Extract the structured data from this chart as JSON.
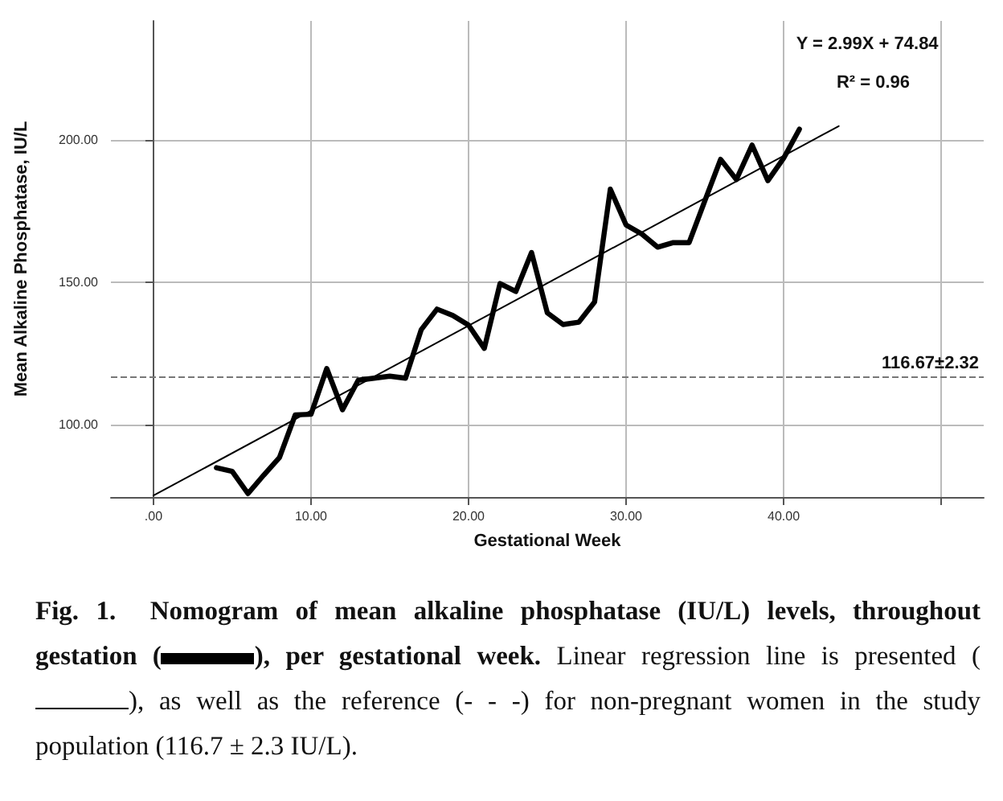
{
  "chart_data": {
    "type": "line",
    "xlabel": "Gestational Week",
    "ylabel": "Mean Alkaline Phosphatase, IU/L",
    "xlim": [
      -2.7,
      52.7
    ],
    "ylim": [
      74.5,
      242
    ],
    "xticks": [
      {
        "value": 0,
        "label": ".00"
      },
      {
        "value": 10,
        "label": "10.00"
      },
      {
        "value": 20,
        "label": "20.00"
      },
      {
        "value": 30,
        "label": "30.00"
      },
      {
        "value": 40,
        "label": "40.00"
      },
      {
        "value": 50,
        "label": null
      }
    ],
    "yticks": [
      {
        "value": 100,
        "label": "100.00"
      },
      {
        "value": 150,
        "label": "150.00"
      },
      {
        "value": 200,
        "label": "200.00"
      }
    ],
    "grid": true,
    "marker": "none",
    "series": [
      {
        "color": "#000000",
        "x": [
          4,
          5,
          6,
          7,
          8,
          9,
          10,
          11,
          12,
          13,
          14,
          15,
          16,
          17,
          18,
          19,
          20,
          21,
          22,
          23,
          24,
          25,
          26,
          27,
          28,
          29,
          30,
          31,
          32,
          33,
          34,
          35,
          36,
          37,
          38,
          39,
          40,
          41
        ],
        "values": [
          84.8,
          83.5,
          75.7,
          82.2,
          88.4,
          103.4,
          103.6,
          119.7,
          105.2,
          115.6,
          116.3,
          117,
          116.3,
          133.4,
          140.6,
          138.4,
          135,
          126.8,
          149.6,
          146.8,
          160.5,
          139.3,
          135.2,
          136,
          143.1,
          182.8,
          170.2,
          167,
          162.4,
          164,
          164,
          178.7,
          193.3,
          186.2,
          198.3,
          185.8,
          193.7,
          203.9
        ]
      },
      {
        "color": "#000000",
        "x": [
          0,
          43.5
        ],
        "values": [
          75,
          205
        ]
      }
    ],
    "ref_lines": [
      {
        "axis": "y",
        "value": 116.67,
        "label": "116.67±2.32",
        "color": "#777777",
        "line_style": "dashed"
      }
    ],
    "annotations": [
      "Y = 2.99X + 74.84",
      "R² = 0.96",
      "Fig. 1.",
      "Nomogram of mean alkaline phosphatase (IU/L) levels, throughout gestation (",
      "), per gestational week.",
      "Linear regression line is presented (",
      "), as well as the reference (- - -) for non-pregnant women in the study population (116.7 ± 2.3 IU/L)."
    ]
  }
}
